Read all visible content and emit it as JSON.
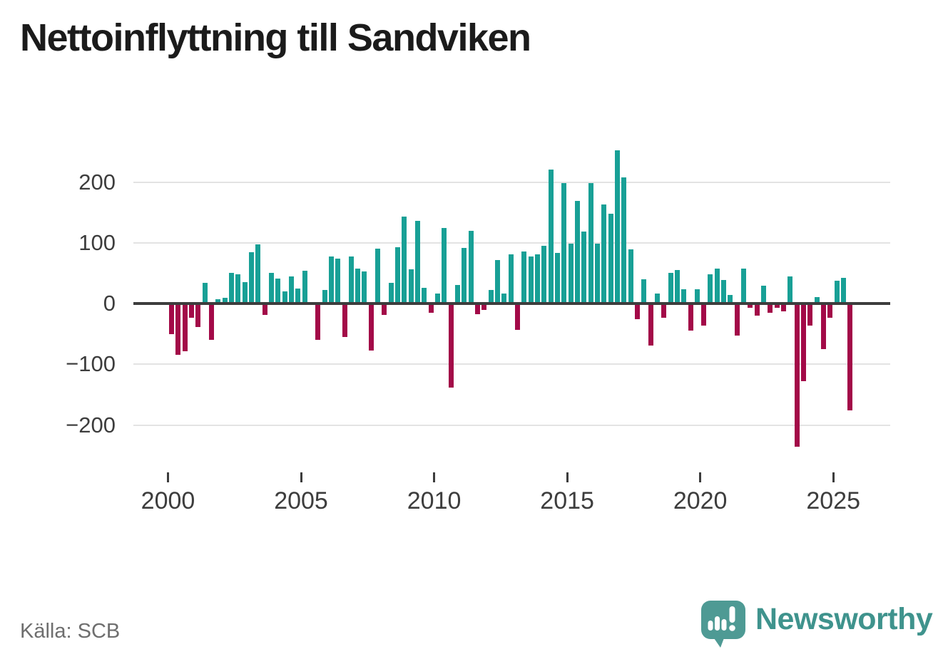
{
  "title": "Nettoinflyttning till Sandviken",
  "source": "Källa: SCB",
  "logo": {
    "name": "Newsworthy",
    "icon": "newsworthy-speech-bubble-bar-chart-icon"
  },
  "colors": {
    "background": "#ffffff",
    "title_text": "#1b1b1b",
    "axis_text": "#3d3d3d",
    "grid_line": "#e3e3e3",
    "zero_line": "#3d3d3d",
    "positive_bar": "#18a096",
    "negative_bar": "#a30a48",
    "source_text": "#6e6e6e",
    "logo_mark": "#4e9a94",
    "logo_text": "#3f938d"
  },
  "chart_data": {
    "type": "bar",
    "title": "Nettoinflyttning till Sandviken",
    "xlabel": "",
    "ylabel": "",
    "frequency": "quarterly",
    "x_range": "2000Q1–2025Q3",
    "x_tick_labels": [
      "2000",
      "2005",
      "2010",
      "2015",
      "2020",
      "2025"
    ],
    "x_tick_years": [
      2000,
      2005,
      2010,
      2015,
      2020,
      2025
    ],
    "y_ticks": [
      200,
      100,
      0,
      -100,
      -200
    ],
    "y_tick_labels": [
      "200",
      "100",
      "0",
      "−100",
      "−200"
    ],
    "ylim": [
      -255,
      265
    ],
    "grid": "horizontal-light",
    "legend": "none",
    "bar_colors": {
      "positive": "#18a096",
      "negative": "#a30a48"
    },
    "series_name": "Nettoinflyttning per kvartal",
    "values_by_year": [
      {
        "year": 2000,
        "quarters": [
          -51,
          -85,
          -79,
          -23
        ]
      },
      {
        "year": 2001,
        "quarters": [
          -39,
          34,
          -60,
          7
        ]
      },
      {
        "year": 2002,
        "quarters": [
          9,
          51,
          48,
          35
        ]
      },
      {
        "year": 2003,
        "quarters": [
          85,
          97,
          -19,
          50
        ]
      },
      {
        "year": 2004,
        "quarters": [
          41,
          20,
          44,
          25
        ]
      },
      {
        "year": 2005,
        "quarters": [
          54,
          0,
          -60,
          22
        ]
      },
      {
        "year": 2006,
        "quarters": [
          78,
          74,
          -55,
          77
        ]
      },
      {
        "year": 2007,
        "quarters": [
          57,
          53,
          -77,
          90
        ]
      },
      {
        "year": 2008,
        "quarters": [
          -19,
          34,
          93,
          143
        ]
      },
      {
        "year": 2009,
        "quarters": [
          56,
          136,
          26,
          -15
        ]
      },
      {
        "year": 2010,
        "quarters": [
          17,
          124,
          -138,
          30
        ]
      },
      {
        "year": 2011,
        "quarters": [
          91,
          120,
          -18,
          -11
        ]
      },
      {
        "year": 2012,
        "quarters": [
          22,
          72,
          16,
          81
        ]
      },
      {
        "year": 2013,
        "quarters": [
          -43,
          86,
          78,
          81
        ]
      },
      {
        "year": 2014,
        "quarters": [
          95,
          221,
          83,
          198
        ]
      },
      {
        "year": 2015,
        "quarters": [
          98,
          169,
          119,
          198
        ]
      },
      {
        "year": 2016,
        "quarters": [
          99,
          163,
          148,
          252
        ]
      },
      {
        "year": 2017,
        "quarters": [
          208,
          89,
          -26,
          40
        ]
      },
      {
        "year": 2018,
        "quarters": [
          -69,
          17,
          -24,
          51
        ]
      },
      {
        "year": 2019,
        "quarters": [
          55,
          24,
          -45,
          23
        ]
      },
      {
        "year": 2020,
        "quarters": [
          -36,
          48,
          57,
          39
        ]
      },
      {
        "year": 2021,
        "quarters": [
          14,
          -53,
          58,
          -7
        ]
      },
      {
        "year": 2022,
        "quarters": [
          -20,
          29,
          -15,
          -7
        ]
      },
      {
        "year": 2023,
        "quarters": [
          -13,
          44,
          -236,
          -128
        ]
      },
      {
        "year": 2024,
        "quarters": [
          -36,
          11,
          -75,
          -23
        ]
      },
      {
        "year": 2025,
        "quarters": [
          37,
          42,
          -176
        ]
      }
    ]
  }
}
